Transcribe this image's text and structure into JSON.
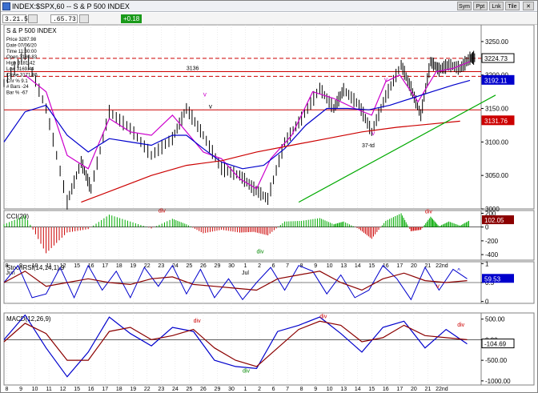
{
  "window": {
    "title": "INDEX:$SPX,60 -- S & P 500 INDEX"
  },
  "toolbar": {
    "field1": "3.21.52",
    "field2": ".65.73",
    "green_value": "+0.18",
    "btn_labels": [
      "Sym",
      "Ppt",
      "Lnk",
      "Tile"
    ]
  },
  "readout": {
    "lines": [
      "Price  3287.98",
      "Date   07/06/20",
      "Time   11:30:00",
      "Open   3180.83",
      "High   3181.42",
      "Low    3169.44",
      "Close  3171.86",
      "Cnr %  9.1",
      "# Bars -24",
      "Bar %  -67"
    ]
  },
  "colors": {
    "price": "#000000",
    "ma_short": "#cc00cc",
    "ma_mid": "#0000cc",
    "ma_long": "#cc0000",
    "trend_green": "#00aa00",
    "bar_red": "#cc0000",
    "bar_green": "#00aa00",
    "annot_red": "#cc0000",
    "annot_green": "#008800"
  },
  "x_axis": {
    "ticks": [
      "8",
      "9",
      "10",
      "11",
      "12",
      "15",
      "16",
      "17",
      "18",
      "19",
      "22",
      "23",
      "24",
      "25",
      "26",
      "29",
      "30",
      "1",
      "2",
      "6",
      "7",
      "8",
      "9",
      "10",
      "13",
      "14",
      "15",
      "16",
      "17",
      "20",
      "21",
      "22nd"
    ],
    "months": [
      "Jun",
      "Jul"
    ]
  },
  "chart_data": [
    {
      "type": "line",
      "title": "S & P 500 INDEX",
      "ylim": [
        3000,
        3275
      ],
      "yticks": [
        3000,
        3050,
        3100,
        3150,
        3200,
        3250
      ],
      "ytick_labels": [
        "3000",
        "3050.00",
        "3100.00",
        "3150.00",
        "3200.00",
        "3250.00"
      ],
      "price_path": [
        [
          0,
          3188
        ],
        [
          1.5,
          3232
        ],
        [
          3,
          3150
        ],
        [
          4.5,
          3010
        ],
        [
          5.5,
          3070
        ],
        [
          6.2,
          3030
        ],
        [
          7.5,
          3145
        ],
        [
          9,
          3120
        ],
        [
          10.5,
          3080
        ],
        [
          12,
          3105
        ],
        [
          13,
          3150
        ],
        [
          14.2,
          3110
        ],
        [
          15.5,
          3060
        ],
        [
          16.8,
          3050
        ],
        [
          17.8,
          3030
        ],
        [
          18.8,
          3015
        ],
        [
          20,
          3100
        ],
        [
          21.2,
          3135
        ],
        [
          22.5,
          3180
        ],
        [
          23.5,
          3150
        ],
        [
          24.2,
          3178
        ],
        [
          25.3,
          3155
        ],
        [
          26.2,
          3115
        ],
        [
          27.2,
          3168
        ],
        [
          28.3,
          3215
        ],
        [
          29,
          3180
        ],
        [
          29.7,
          3140
        ],
        [
          30.4,
          3220
        ],
        [
          31,
          3208
        ],
        [
          31.7,
          3215
        ],
        [
          32.5,
          3210
        ],
        [
          33.2,
          3225
        ],
        [
          33.6,
          3226
        ]
      ],
      "ma_short": [
        [
          1.5,
          3200
        ],
        [
          3,
          3175
        ],
        [
          4.5,
          3080
        ],
        [
          6,
          3060
        ],
        [
          7.5,
          3135
        ],
        [
          9,
          3115
        ],
        [
          10.5,
          3110
        ],
        [
          12,
          3140
        ],
        [
          13,
          3115
        ],
        [
          14.2,
          3085
        ],
        [
          15.5,
          3075
        ],
        [
          16.8,
          3045
        ],
        [
          18,
          3030
        ],
        [
          19,
          3075
        ],
        [
          20.5,
          3110
        ],
        [
          22,
          3175
        ],
        [
          23.5,
          3165
        ],
        [
          25,
          3150
        ],
        [
          26.2,
          3140
        ],
        [
          27.2,
          3190
        ],
        [
          28.2,
          3200
        ],
        [
          29.5,
          3160
        ],
        [
          30.8,
          3205
        ],
        [
          32,
          3210
        ],
        [
          33.2,
          3220
        ]
      ],
      "ma_mid": [
        [
          0,
          3100
        ],
        [
          1.5,
          3145
        ],
        [
          3,
          3155
        ],
        [
          4.5,
          3110
        ],
        [
          6,
          3085
        ],
        [
          7.5,
          3105
        ],
        [
          9,
          3100
        ],
        [
          10.5,
          3095
        ],
        [
          12,
          3110
        ],
        [
          13,
          3110
        ],
        [
          14.2,
          3090
        ],
        [
          15.5,
          3070
        ],
        [
          17,
          3060
        ],
        [
          18.5,
          3065
        ],
        [
          20,
          3090
        ],
        [
          21.5,
          3125
        ],
        [
          23,
          3150
        ],
        [
          24.5,
          3150
        ],
        [
          26,
          3148
        ],
        [
          27.5,
          3155
        ],
        [
          29,
          3165
        ],
        [
          30.5,
          3175
        ],
        [
          32,
          3185
        ],
        [
          33.2,
          3192
        ]
      ],
      "ma_long": [
        [
          5.5,
          3010
        ],
        [
          8,
          3030
        ],
        [
          10.5,
          3050
        ],
        [
          13,
          3065
        ],
        [
          15.5,
          3072
        ],
        [
          18,
          3085
        ],
        [
          20.5,
          3095
        ],
        [
          23,
          3105
        ],
        [
          25.5,
          3115
        ],
        [
          28,
          3122
        ],
        [
          30.5,
          3127
        ],
        [
          32.5,
          3131
        ]
      ],
      "last_price_labels": [
        {
          "label": "3224.73",
          "value": 3224.73
        },
        {
          "label": "3192.11",
          "value": 3192.11
        },
        {
          "label": "3131.76",
          "value": 3131.76
        }
      ],
      "horizontal_levels": [
        {
          "value": 3225,
          "style": "dashed-red"
        },
        {
          "value": 3198,
          "style": "dashed-red"
        },
        {
          "value": 3205,
          "style": "solid-red"
        },
        {
          "value": 3148,
          "style": "solid-red"
        }
      ],
      "annotations": [
        "3136",
        "v",
        "v",
        "v",
        "v",
        "37-td"
      ]
    },
    {
      "type": "bar",
      "title": "CCI(20)",
      "ylim": [
        -480,
        240
      ],
      "yticks": [
        -400,
        -200,
        0,
        200
      ],
      "ytick_labels": [
        "-400",
        "-200",
        "0",
        "200"
      ],
      "last_value_label": "102.05",
      "histogram_segments": [
        [
          0,
          40
        ],
        [
          1.5,
          170
        ],
        [
          3,
          -380
        ],
        [
          4.5,
          -80
        ],
        [
          6,
          -30
        ],
        [
          7.5,
          180
        ],
        [
          9,
          80
        ],
        [
          10.5,
          -20
        ],
        [
          12,
          120
        ],
        [
          13,
          40
        ],
        [
          14.2,
          -90
        ],
        [
          15.5,
          -40
        ],
        [
          16.8,
          -80
        ],
        [
          17.8,
          -70
        ],
        [
          18.8,
          -120
        ],
        [
          20,
          80
        ],
        [
          21.2,
          90
        ],
        [
          22.5,
          130
        ],
        [
          23.5,
          40
        ],
        [
          24.2,
          80
        ],
        [
          25.3,
          -30
        ],
        [
          26.2,
          -170
        ],
        [
          27.2,
          90
        ],
        [
          28.3,
          200
        ],
        [
          29,
          -60
        ],
        [
          29.7,
          -40
        ],
        [
          30.4,
          150
        ],
        [
          31,
          10
        ],
        [
          31.7,
          80
        ],
        [
          32.5,
          20
        ],
        [
          33.2,
          100
        ]
      ],
      "annotations": [
        "div",
        "div",
        "div"
      ]
    },
    {
      "type": "line",
      "title": "StochRSI(14,14,1),9",
      "ylim": [
        -0.05,
        1.05
      ],
      "yticks": [
        0,
        0.5,
        1
      ],
      "last_value_label": "59.53",
      "series": [
        {
          "values": [
            [
              0,
              0.5
            ],
            [
              1,
              0.95
            ],
            [
              2,
              0.1
            ],
            [
              3,
              0.2
            ],
            [
              4,
              0.9
            ],
            [
              5,
              0.1
            ],
            [
              6,
              0.95
            ],
            [
              7,
              0.3
            ],
            [
              8,
              0.8
            ],
            [
              9,
              0.1
            ],
            [
              10,
              0.9
            ],
            [
              11,
              0.4
            ],
            [
              12,
              0.95
            ],
            [
              13,
              0.2
            ],
            [
              14,
              0.85
            ],
            [
              15,
              0.1
            ],
            [
              16,
              0.6
            ],
            [
              17,
              0.05
            ],
            [
              18,
              0.5
            ],
            [
              19,
              0.9
            ],
            [
              20,
              0.3
            ],
            [
              21,
              0.95
            ],
            [
              22,
              0.8
            ],
            [
              23,
              0.2
            ],
            [
              24,
              0.7
            ],
            [
              25,
              0.1
            ],
            [
              26,
              0.3
            ],
            [
              27,
              0.95
            ],
            [
              28,
              0.6
            ],
            [
              29,
              0.05
            ],
            [
              30,
              0.9
            ],
            [
              31,
              0.3
            ],
            [
              32,
              0.85
            ],
            [
              33,
              0.6
            ]
          ]
        },
        {
          "values": [
            [
              0,
              0.5
            ],
            [
              1.5,
              0.8
            ],
            [
              3,
              0.4
            ],
            [
              4.5,
              0.5
            ],
            [
              6,
              0.6
            ],
            [
              7.5,
              0.5
            ],
            [
              9,
              0.45
            ],
            [
              10.5,
              0.6
            ],
            [
              12,
              0.65
            ],
            [
              13.5,
              0.45
            ],
            [
              15,
              0.4
            ],
            [
              16.5,
              0.35
            ],
            [
              18,
              0.3
            ],
            [
              19.5,
              0.6
            ],
            [
              21,
              0.7
            ],
            [
              22.5,
              0.8
            ],
            [
              24,
              0.5
            ],
            [
              25.5,
              0.3
            ],
            [
              27,
              0.6
            ],
            [
              28.5,
              0.75
            ],
            [
              30,
              0.55
            ],
            [
              31.5,
              0.5
            ],
            [
              33,
              0.55
            ]
          ]
        }
      ],
      "annotations": [
        "v",
        "^"
      ]
    },
    {
      "type": "line",
      "title": "MACD(12,26,9)",
      "ylim": [
        -1100,
        650
      ],
      "yticks": [
        -1000,
        -500,
        0,
        500
      ],
      "ytick_labels": [
        "-1000.00",
        "-500.00",
        "0.00",
        "500.00"
      ],
      "last_value_label": "-104.69",
      "series": [
        {
          "values": [
            [
              0,
              0
            ],
            [
              1.5,
              600
            ],
            [
              3,
              -200
            ],
            [
              4.5,
              -900
            ],
            [
              6,
              -300
            ],
            [
              7.5,
              550
            ],
            [
              9,
              150
            ],
            [
              10.5,
              -150
            ],
            [
              12,
              300
            ],
            [
              13.5,
              200
            ],
            [
              15,
              -500
            ],
            [
              16.5,
              -650
            ],
            [
              18,
              -700
            ],
            [
              19.5,
              200
            ],
            [
              21,
              350
            ],
            [
              22.5,
              550
            ],
            [
              24,
              150
            ],
            [
              25.5,
              -300
            ],
            [
              27,
              300
            ],
            [
              28.5,
              450
            ],
            [
              30,
              -200
            ],
            [
              31.5,
              250
            ],
            [
              33,
              -100
            ]
          ]
        },
        {
          "values": [
            [
              0,
              -50
            ],
            [
              1.5,
              400
            ],
            [
              3,
              150
            ],
            [
              4.5,
              -500
            ],
            [
              6,
              -500
            ],
            [
              7.5,
              200
            ],
            [
              9,
              300
            ],
            [
              10.5,
              0
            ],
            [
              12,
              100
            ],
            [
              13.5,
              250
            ],
            [
              15,
              -200
            ],
            [
              16.5,
              -500
            ],
            [
              18,
              -650
            ],
            [
              19.5,
              -200
            ],
            [
              21,
              250
            ],
            [
              22.5,
              450
            ],
            [
              24,
              350
            ],
            [
              25.5,
              -50
            ],
            [
              27,
              50
            ],
            [
              28.5,
              350
            ],
            [
              30,
              100
            ],
            [
              31.5,
              50
            ],
            [
              33,
              0
            ]
          ]
        }
      ],
      "annotations": [
        "div",
        "div",
        "div",
        "div"
      ]
    }
  ]
}
